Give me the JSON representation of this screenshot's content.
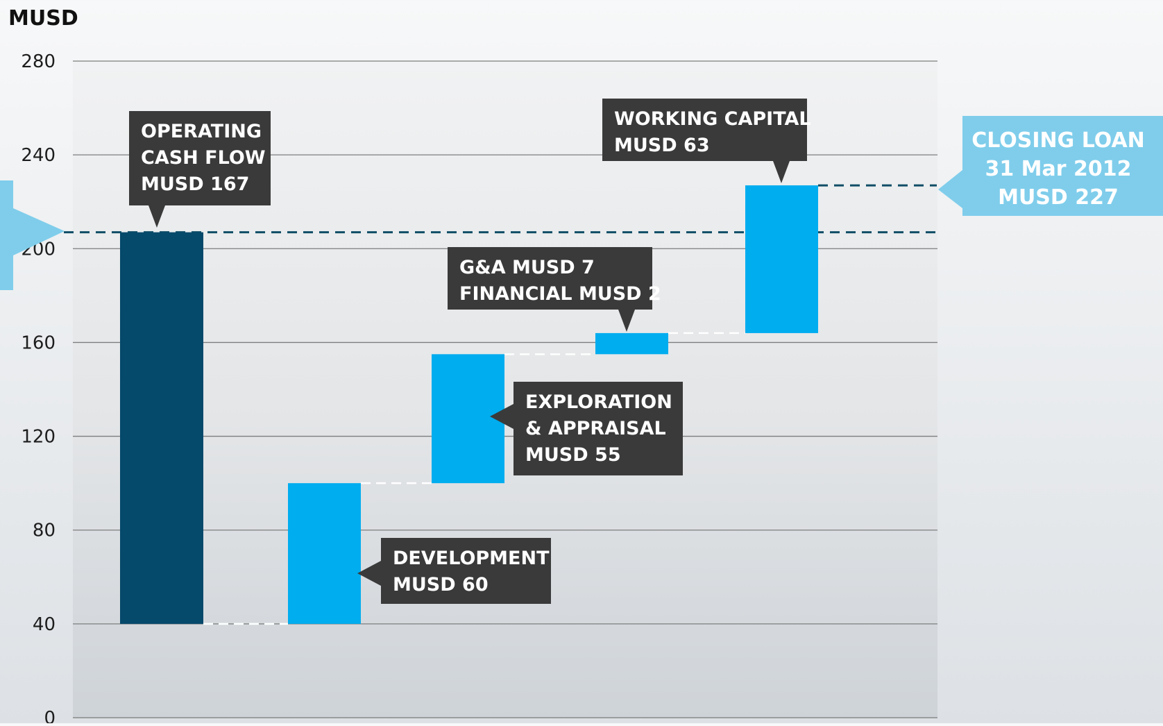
{
  "chart_data": {
    "type": "bar",
    "ylabel": "MUSD",
    "ylim": [
      0,
      280
    ],
    "yticks": [
      0,
      40,
      80,
      120,
      160,
      200,
      240,
      280
    ],
    "grid": true,
    "opening_loan_level": 207,
    "steps": [
      {
        "name": "Operating cash flow",
        "start": 40,
        "end": 207,
        "color": "#05496b"
      },
      {
        "name": "Development",
        "start": 40,
        "end": 100,
        "color": "#00adef"
      },
      {
        "name": "Exploration & appraisal",
        "start": 100,
        "end": 155,
        "color": "#00adef"
      },
      {
        "name": "G&A and financial",
        "start": 155,
        "end": 164,
        "color": "#00adef"
      },
      {
        "name": "Working capital",
        "start": 164,
        "end": 227,
        "color": "#00adef"
      }
    ],
    "callouts": [
      {
        "lines": [
          "OPERATING",
          "CASH FLOW",
          "MUSD 167"
        ]
      },
      {
        "lines": [
          "DEVELOPMENT",
          "MUSD  60"
        ]
      },
      {
        "lines": [
          "EXPLORATION",
          "& APPRAISAL",
          "MUSD  55"
        ]
      },
      {
        "lines": [
          "G&A MUSD 7",
          "FINANCIAL MUSD 2"
        ]
      },
      {
        "lines": [
          "WORKING CAPITAL",
          "MUSD 63"
        ]
      }
    ],
    "closing_label": {
      "lines": [
        "CLOSING LOAN",
        "31 Mar 2012",
        "MUSD 227"
      ]
    },
    "colors": {
      "dark_bar": "#05496b",
      "light_bar": "#00adef",
      "callout_bg": "#3a3a3a",
      "closing_label_bg": "#7fcdeb",
      "dashed_line": "#0f4d66"
    }
  }
}
